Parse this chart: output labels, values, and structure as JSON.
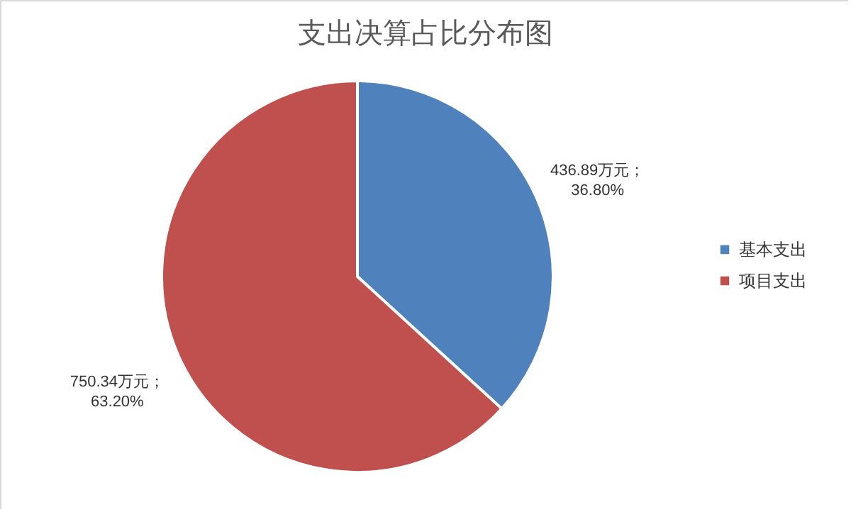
{
  "chart_data": {
    "type": "pie",
    "title": "支出决算占比分布图",
    "categories": [
      "基本支出",
      "项目支出"
    ],
    "values": [
      436.89,
      750.34
    ],
    "colors": [
      "#4f81bd",
      "#c0504d"
    ],
    "value_labels": [
      "436.89万元；36.80%",
      "750.34万元；63.20%"
    ],
    "legend": "right"
  }
}
